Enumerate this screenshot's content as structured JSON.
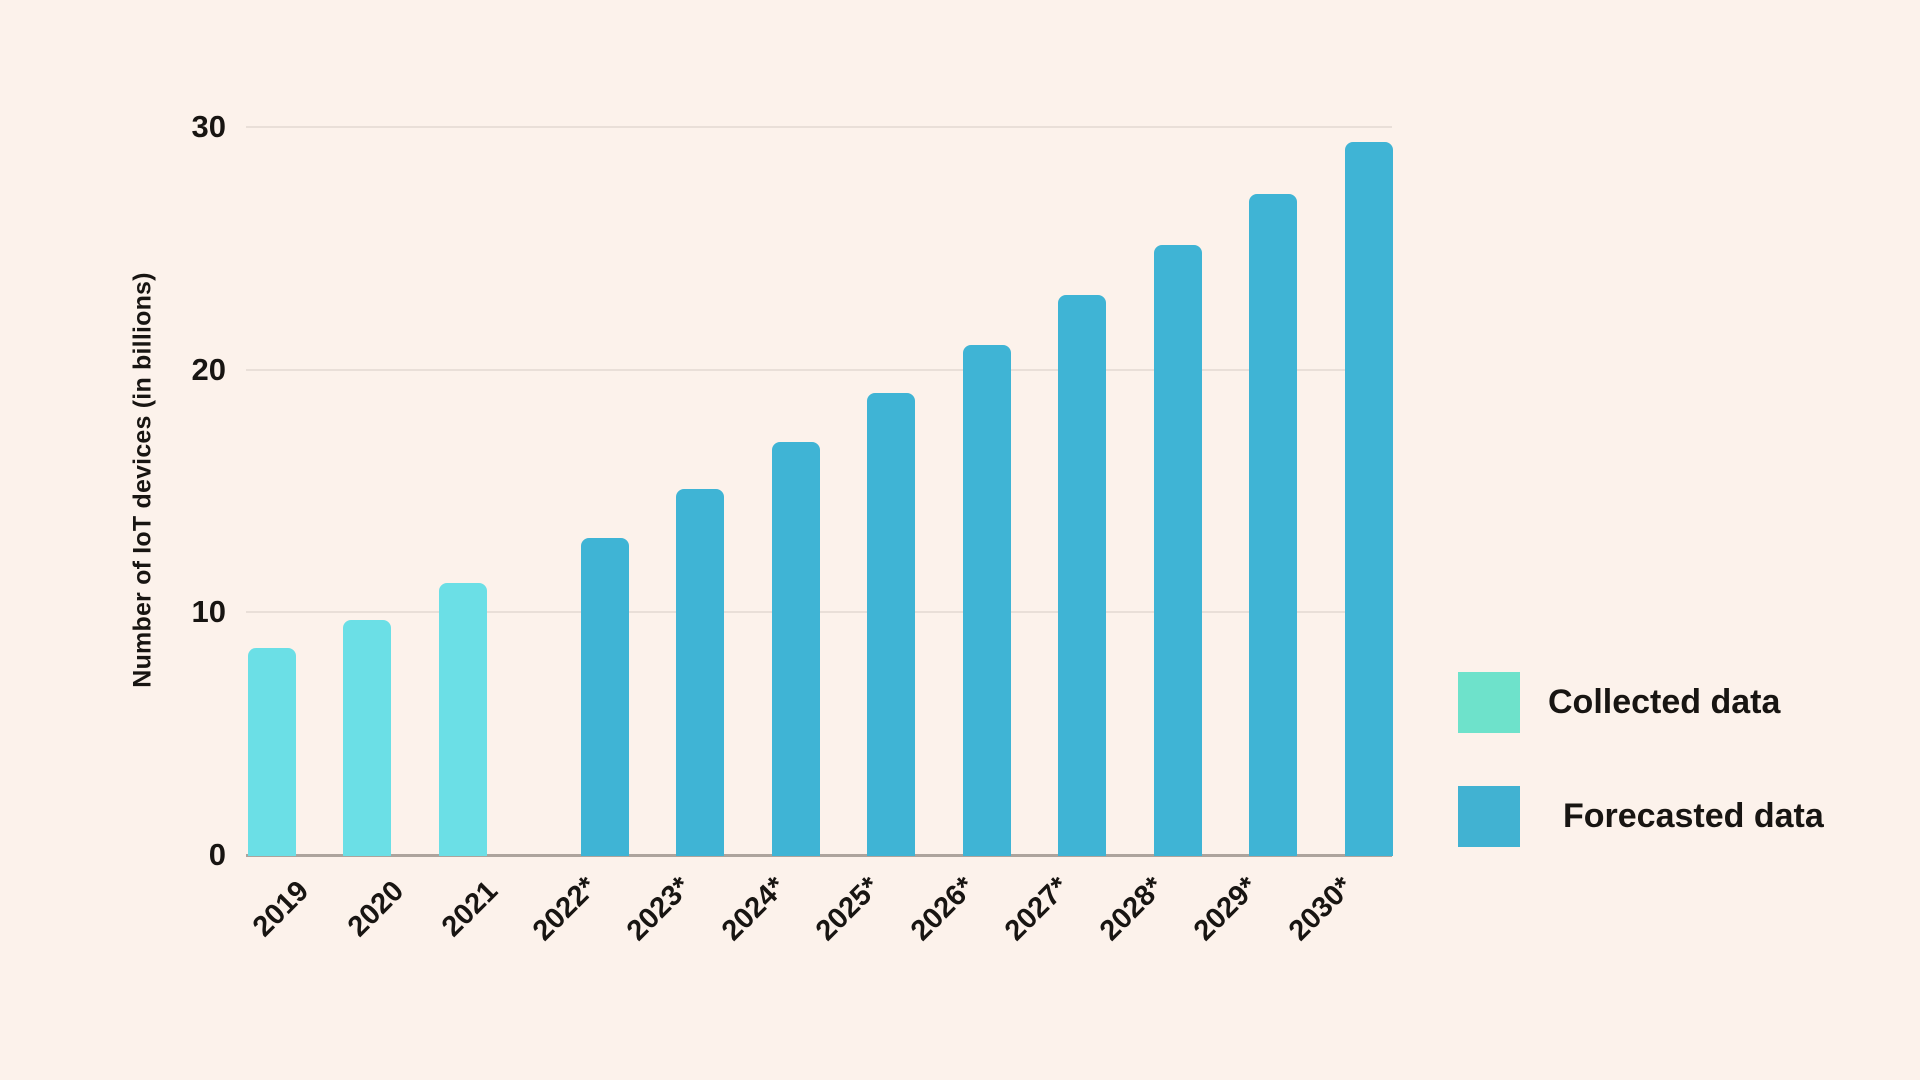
{
  "colors": {
    "background": "#FCF2EB",
    "collected_bar": "#6BDFE6",
    "forecast_bar": "#3FB4D5",
    "gridline": "#E9DFD8",
    "axis_line": "#ADA49D",
    "text": "#181512"
  },
  "chart_data": {
    "type": "bar",
    "title": "",
    "xlabel": "",
    "ylabel": "Number of IoT devices (in billions)",
    "ylim": [
      0,
      30
    ],
    "yticks": [
      0,
      10,
      20,
      30
    ],
    "grid": true,
    "legend_position": "right-middle",
    "bar_corner": "rounded-top",
    "x_tick_rotation_deg": -45,
    "series": [
      {
        "name": "Collected data",
        "bar_color": "#6BDFE6",
        "categories": [
          "2019",
          "2020",
          "2021"
        ],
        "values": [
          8.6,
          9.76,
          11.28
        ]
      },
      {
        "name": "Forecasted data",
        "bar_color": "#3FB4D5",
        "categories": [
          "2022*",
          "2023*",
          "2024*",
          "2025*",
          "2026*",
          "2027*",
          "2028*",
          "2029*",
          "2030*"
        ],
        "values": [
          13.14,
          15.14,
          17.08,
          19.08,
          21.09,
          23.14,
          25.21,
          27.31,
          29.42
        ]
      }
    ]
  },
  "legend": {
    "items": [
      {
        "label": "Collected data",
        "swatch_color": "#6EE2CB"
      },
      {
        "label": "Forecasted data",
        "swatch_color": "#41B2D2"
      }
    ]
  }
}
